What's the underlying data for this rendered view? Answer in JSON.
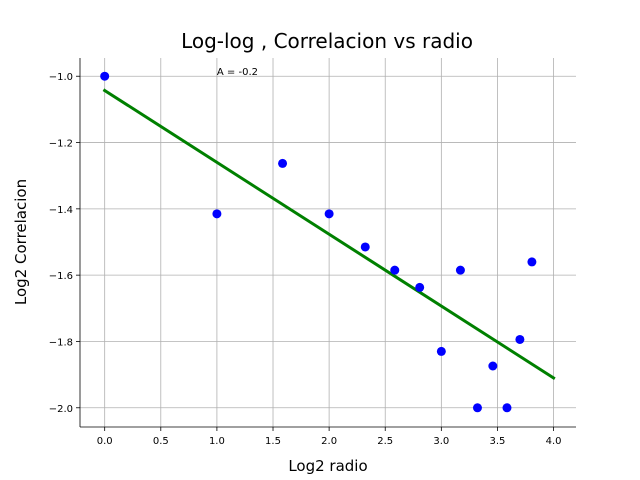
{
  "chart_data": {
    "type": "scatter",
    "title": "Log-log , Correlacion vs radio",
    "xlabel": "Log2 radio",
    "ylabel": "Log2 Correlacion",
    "xlim": [
      -0.22,
      4.2
    ],
    "ylim": [
      -2.058,
      -0.945
    ],
    "xticks": [
      0.0,
      0.5,
      1.0,
      1.5,
      2.0,
      2.5,
      3.0,
      3.5,
      4.0
    ],
    "xtick_labels": [
      "0.0",
      "0.5",
      "1.0",
      "1.5",
      "2.0",
      "2.5",
      "3.0",
      "3.5",
      "4.0"
    ],
    "yticks": [
      -1.0,
      -1.2,
      -1.4,
      -1.6,
      -1.8,
      -2.0
    ],
    "ytick_labels": [
      "−1.0",
      "−1.2",
      "−1.4",
      "−1.6",
      "−1.8",
      "−2.0"
    ],
    "grid": true,
    "series": [
      {
        "marker": "circle",
        "color": "#0000ff",
        "points": [
          [
            0.0,
            -1.0
          ],
          [
            1.0,
            -1.415
          ],
          [
            1.585,
            -1.263
          ],
          [
            2.0,
            -1.415
          ],
          [
            2.322,
            -1.515
          ],
          [
            2.585,
            -1.585
          ],
          [
            2.807,
            -1.637
          ],
          [
            3.0,
            -1.83
          ],
          [
            3.17,
            -1.585
          ],
          [
            3.322,
            -2.0
          ],
          [
            3.459,
            -1.874
          ],
          [
            3.585,
            -2.0
          ],
          [
            3.7,
            -1.794
          ],
          [
            3.807,
            -1.56
          ]
        ]
      },
      {
        "type": "line",
        "color": "#008000",
        "points": [
          [
            0.0,
            -1.043
          ],
          [
            4.0,
            -1.91
          ]
        ]
      }
    ],
    "annotation": {
      "text": "A = -0.2",
      "x": 1.0,
      "y": -1.0
    }
  }
}
